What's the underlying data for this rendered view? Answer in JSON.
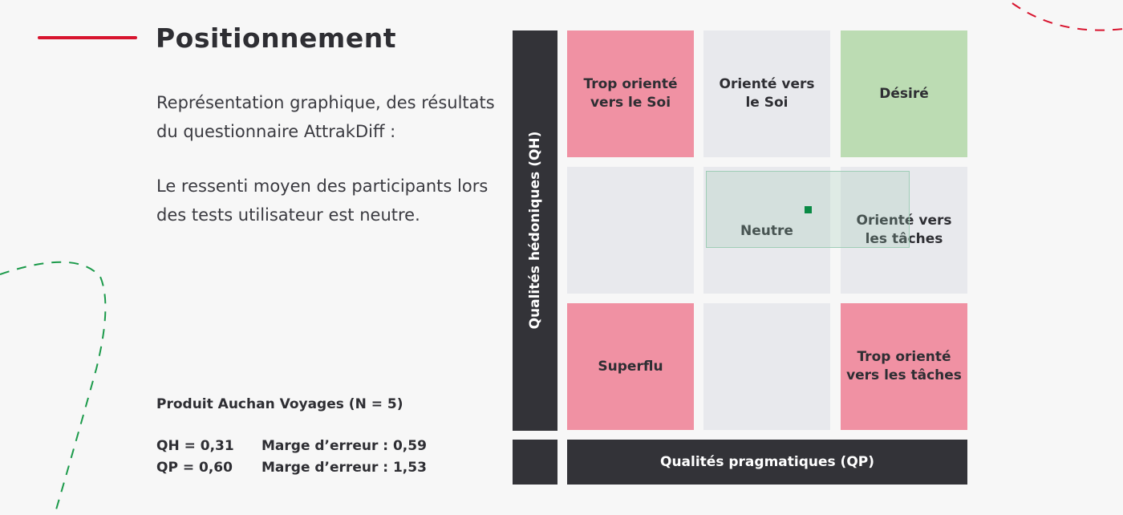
{
  "colors": {
    "accent_red": "#d8152f",
    "dark": "#333338",
    "pink": "#f091a3",
    "grey": "#e8e9ed",
    "green": "#bcdcb3",
    "point": "#0a8a45",
    "deco_green": "#1b9a4a"
  },
  "header": {
    "title": "Positionnement"
  },
  "text": {
    "para1": "Représentation graphique, des résultats du questionnaire AttrakDiff :",
    "para2": "Le ressenti moyen des participants lors des tests utilisateur est neutre."
  },
  "stats": {
    "product": "Produit Auchan Voyages (N = 5)",
    "qh": "QH = 0,31",
    "qh_margin": "Marge d’erreur : 0,59",
    "qp": "QP = 0,60",
    "qp_margin": "Marge d’erreur : 1,53"
  },
  "chart_data": {
    "type": "scatter",
    "title": "",
    "xlabel": "Qualités pragmatiques (QP)",
    "ylabel": "Qualités hédoniques (QH)",
    "grid": {
      "rows": [
        [
          "Trop orienté\nvers le Soi",
          "Orienté vers\nle Soi",
          "Désiré"
        ],
        [
          "",
          "Neutre",
          "Orienté vers\nles tâches"
        ],
        [
          "Superflu",
          "",
          "Trop orienté\nvers les tâches"
        ]
      ],
      "colors": [
        [
          "pink",
          "grey",
          "green"
        ],
        [
          "grey",
          "grey",
          "grey"
        ],
        [
          "pink",
          "grey",
          "pink"
        ]
      ]
    },
    "point": {
      "name": "Produit Auchan Voyages",
      "x": 0.6,
      "y": 0.31
    },
    "error_margin": {
      "x": 1.53,
      "y": 0.59
    }
  }
}
